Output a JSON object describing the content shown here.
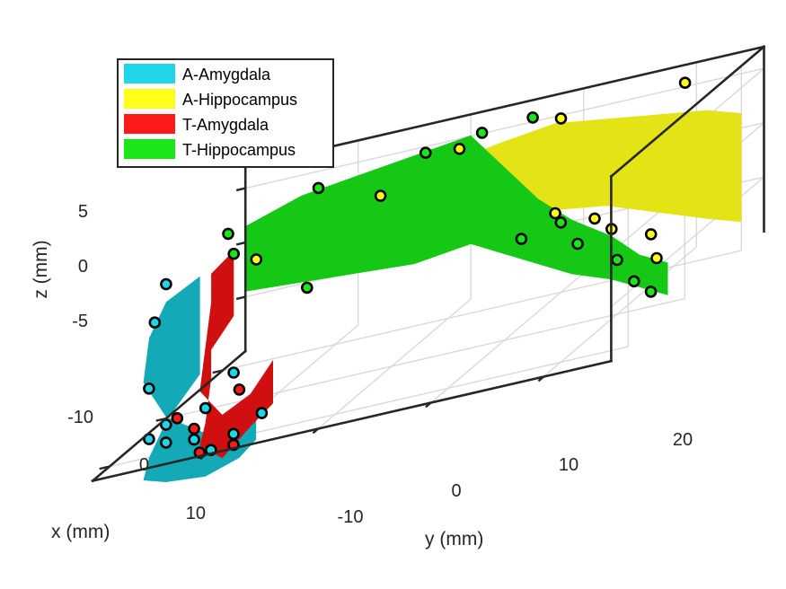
{
  "chart_data": {
    "type": "scatter",
    "title": "",
    "view": "3-D surface plot with scatter points",
    "grid": true,
    "legend_placement": "top-left",
    "axes": {
      "x": {
        "label": "x (mm)",
        "ticks": [
          -10,
          0,
          10
        ],
        "tick_labels": [
          "-10",
          "0",
          "10"
        ],
        "lim": [
          -14,
          13
        ]
      },
      "y": {
        "label": "y (mm)",
        "ticks": [
          -10,
          0,
          10,
          20
        ],
        "tick_labels": [
          "-10",
          "0",
          "10",
          "20"
        ],
        "lim": [
          -20,
          26
        ]
      },
      "z": {
        "label": "z (mm)",
        "ticks": [
          -5,
          0,
          5
        ],
        "tick_labels": [
          "-5",
          "0",
          "5"
        ],
        "lim": [
          -10,
          7
        ]
      }
    },
    "series": [
      {
        "name": "A-Amygdala",
        "color": "#1fd6e6",
        "surface_color": "#14a9b6",
        "points": [
          [
            9,
            -17,
            -4
          ],
          [
            6,
            -18,
            1
          ],
          [
            2,
            -19,
            3
          ],
          [
            8,
            -16,
            -8
          ],
          [
            10,
            -15,
            -9
          ],
          [
            11,
            -12,
            -9
          ],
          [
            12,
            -10,
            -10
          ],
          [
            12,
            -8,
            -9
          ],
          [
            11,
            -6,
            -8
          ],
          [
            10,
            -9,
            -4
          ],
          [
            9,
            -12,
            -7
          ],
          [
            11,
            -16,
            -8
          ]
        ]
      },
      {
        "name": "A-Hippocampus",
        "color": "#ffff1a",
        "surface_color": "#e3e315",
        "points": [
          [
            -6,
            -4,
            4
          ],
          [
            -8,
            2,
            6
          ],
          [
            -10,
            10,
            6
          ],
          [
            -12,
            20,
            6
          ],
          [
            -5,
            12,
            -1
          ],
          [
            -4,
            16,
            -2
          ],
          [
            -3,
            18,
            -3
          ],
          [
            -2,
            22,
            -4
          ],
          [
            -1,
            23,
            -6
          ],
          [
            4,
            -10,
            4
          ]
        ]
      },
      {
        "name": "T-Amygdala",
        "color": "#ff1a1a",
        "surface_color": "#d01010",
        "points": [
          [
            10,
            -14,
            -7
          ],
          [
            11,
            -12,
            -8
          ],
          [
            12,
            -11,
            -10
          ],
          [
            9,
            -9,
            -6
          ],
          [
            12,
            -8,
            -10
          ]
        ]
      },
      {
        "name": "T-Hippocampus",
        "color": "#1ae61a",
        "surface_color": "#16c816",
        "points": [
          [
            1,
            -14,
            6
          ],
          [
            -3,
            -8,
            7
          ],
          [
            -6,
            0,
            7
          ],
          [
            -8,
            4,
            7
          ],
          [
            -9,
            8,
            7
          ],
          [
            4,
            -12,
            5
          ],
          [
            3,
            -6,
            0
          ],
          [
            -3,
            10,
            -2
          ],
          [
            -2,
            14,
            -1
          ],
          [
            -1,
            16,
            -3
          ],
          [
            0,
            20,
            -5
          ],
          [
            1,
            22,
            -7
          ],
          [
            2,
            24,
            -8
          ]
        ]
      }
    ]
  }
}
